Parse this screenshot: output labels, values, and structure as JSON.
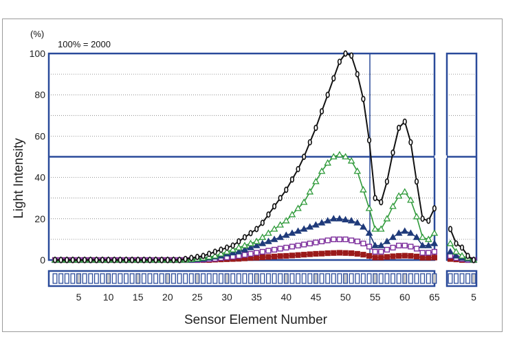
{
  "chart_data": {
    "type": "line",
    "unit_label": "(%)",
    "annotation": "100% = 2000",
    "ylabel": "Light Intensity",
    "xlabel": "Sensor Element Number",
    "ylim": [
      0,
      100
    ],
    "yticks": [
      "0",
      "20",
      "40",
      "60",
      "80",
      "100"
    ],
    "xticks_main": [
      "5",
      "10",
      "15",
      "20",
      "25",
      "30",
      "35",
      "40",
      "45",
      "50",
      "55",
      "60",
      "65"
    ],
    "xticks_aux": [
      "5"
    ],
    "threshold": 50,
    "grid": "horizontal dotted",
    "colors": {
      "frame": "#2a4a9a",
      "grid": "#777777",
      "cell_fill": "#c9c9c9",
      "series": [
        "#111111",
        "#2f9a3a",
        "#1f3a7a",
        "#7a2a9a",
        "#9a1a1a"
      ]
    },
    "series": [
      {
        "marker": "circle-open",
        "x": [
          1,
          2,
          3,
          4,
          5,
          6,
          7,
          8,
          9,
          10,
          11,
          12,
          13,
          14,
          15,
          16,
          17,
          18,
          19,
          20,
          21,
          22,
          23,
          24,
          25,
          26,
          27,
          28,
          29,
          30,
          31,
          32,
          33,
          34,
          35,
          36,
          37,
          38,
          39,
          40,
          41,
          42,
          43,
          44,
          45,
          46,
          47,
          48,
          49,
          50,
          51,
          52,
          53,
          54,
          55,
          56,
          57,
          58,
          59,
          60,
          61,
          62,
          63,
          64,
          65
        ],
        "y": [
          0,
          0,
          0,
          0,
          0,
          0,
          0,
          0,
          0,
          0,
          0,
          0,
          0,
          0,
          0,
          0,
          0,
          0,
          0,
          0,
          0,
          0,
          0.5,
          1,
          1.5,
          2,
          3,
          4,
          5,
          6,
          7,
          9,
          11,
          13,
          15,
          18,
          22,
          26,
          30,
          34,
          39,
          44,
          50,
          57,
          64,
          72,
          80,
          88,
          96,
          100,
          99,
          90,
          78,
          58,
          30,
          28,
          38,
          52,
          64,
          67,
          57,
          38,
          20,
          19,
          25
        ],
        "aux_x": [
          1,
          2,
          3,
          4,
          5
        ],
        "aux_y": [
          15,
          8,
          6,
          2,
          0
        ]
      },
      {
        "marker": "triangle-open",
        "x": [
          1,
          2,
          3,
          4,
          5,
          6,
          7,
          8,
          9,
          10,
          11,
          12,
          13,
          14,
          15,
          16,
          17,
          18,
          19,
          20,
          21,
          22,
          23,
          24,
          25,
          26,
          27,
          28,
          29,
          30,
          31,
          32,
          33,
          34,
          35,
          36,
          37,
          38,
          39,
          40,
          41,
          42,
          43,
          44,
          45,
          46,
          47,
          48,
          49,
          50,
          51,
          52,
          53,
          54,
          55,
          56,
          57,
          58,
          59,
          60,
          61,
          62,
          63,
          64,
          65
        ],
        "y": [
          0,
          0,
          0,
          0,
          0,
          0,
          0,
          0,
          0,
          0,
          0,
          0,
          0,
          0,
          0,
          0,
          0,
          0,
          0,
          0,
          0,
          0,
          0,
          0.3,
          0.6,
          1,
          1.5,
          2,
          3,
          4,
          5,
          6,
          7,
          8,
          9,
          11,
          13,
          15,
          17,
          19,
          22,
          25,
          28,
          33,
          38,
          43,
          47,
          50,
          51,
          50,
          48,
          43,
          34,
          25,
          15,
          15,
          20,
          26,
          31,
          33,
          29,
          21,
          11,
          10,
          13
        ],
        "aux_x": [
          1,
          2,
          3,
          4,
          5
        ],
        "aux_y": [
          8,
          4,
          2,
          1,
          0
        ]
      },
      {
        "marker": "triangle-filled",
        "x": [
          1,
          2,
          3,
          4,
          5,
          6,
          7,
          8,
          9,
          10,
          11,
          12,
          13,
          14,
          15,
          16,
          17,
          18,
          19,
          20,
          21,
          22,
          23,
          24,
          25,
          26,
          27,
          28,
          29,
          30,
          31,
          32,
          33,
          34,
          35,
          36,
          37,
          38,
          39,
          40,
          41,
          42,
          43,
          44,
          45,
          46,
          47,
          48,
          49,
          50,
          51,
          52,
          53,
          54,
          55,
          56,
          57,
          58,
          59,
          60,
          61,
          62,
          63,
          64,
          65
        ],
        "y": [
          0,
          0,
          0,
          0,
          0,
          0,
          0,
          0,
          0,
          0,
          0,
          0,
          0,
          0,
          0,
          0,
          0,
          0,
          0,
          0,
          0,
          0,
          0,
          0,
          0.3,
          0.5,
          1,
          1.5,
          2,
          3,
          3.5,
          4,
          5,
          6,
          7,
          8,
          9,
          10,
          11,
          12,
          13,
          14,
          15,
          16,
          17,
          18,
          19,
          20,
          20,
          19.5,
          19,
          18,
          16,
          13,
          7,
          7,
          9,
          11,
          13,
          14,
          13,
          11,
          7,
          7,
          8
        ],
        "aux_x": [
          1,
          2,
          3,
          4,
          5
        ],
        "aux_y": [
          4,
          2,
          1,
          0.5,
          0
        ]
      },
      {
        "marker": "square-open",
        "x": [
          1,
          2,
          3,
          4,
          5,
          6,
          7,
          8,
          9,
          10,
          11,
          12,
          13,
          14,
          15,
          16,
          17,
          18,
          19,
          20,
          21,
          22,
          23,
          24,
          25,
          26,
          27,
          28,
          29,
          30,
          31,
          32,
          33,
          34,
          35,
          36,
          37,
          38,
          39,
          40,
          41,
          42,
          43,
          44,
          45,
          46,
          47,
          48,
          49,
          50,
          51,
          52,
          53,
          54,
          55,
          56,
          57,
          58,
          59,
          60,
          61,
          62,
          63,
          64,
          65
        ],
        "y": [
          0,
          0,
          0,
          0,
          0,
          0,
          0,
          0,
          0,
          0,
          0,
          0,
          0,
          0,
          0,
          0,
          0,
          0,
          0,
          0,
          0,
          0,
          0,
          0,
          0,
          0.2,
          0.4,
          0.6,
          1,
          1.3,
          1.6,
          2,
          2.5,
          3,
          3.5,
          4,
          4.5,
          5,
          5.5,
          6,
          6.5,
          7,
          7.5,
          8,
          8.5,
          9,
          9.5,
          10,
          10,
          10,
          9.5,
          9,
          8,
          6.5,
          4,
          4,
          5,
          6,
          7,
          7,
          6.5,
          5.5,
          3.5,
          3.5,
          4
        ],
        "aux_x": [
          1,
          2,
          3,
          4,
          5
        ],
        "aux_y": [
          2,
          1,
          0.5,
          0,
          0
        ]
      },
      {
        "marker": "square-filled",
        "x": [
          1,
          2,
          3,
          4,
          5,
          6,
          7,
          8,
          9,
          10,
          11,
          12,
          13,
          14,
          15,
          16,
          17,
          18,
          19,
          20,
          21,
          22,
          23,
          24,
          25,
          26,
          27,
          28,
          29,
          30,
          31,
          32,
          33,
          34,
          35,
          36,
          37,
          38,
          39,
          40,
          41,
          42,
          43,
          44,
          45,
          46,
          47,
          48,
          49,
          50,
          51,
          52,
          53,
          54,
          55,
          56,
          57,
          58,
          59,
          60,
          61,
          62,
          63,
          64,
          65
        ],
        "y": [
          0,
          0,
          0,
          0,
          0,
          0,
          0,
          0,
          0,
          0,
          0,
          0,
          0,
          0,
          0,
          0,
          0,
          0,
          0,
          0,
          0,
          0,
          0,
          0,
          0,
          0,
          0,
          0.2,
          0.3,
          0.4,
          0.5,
          0.6,
          0.8,
          1,
          1.1,
          1.3,
          1.5,
          1.7,
          1.9,
          2,
          2.2,
          2.4,
          2.6,
          2.8,
          3,
          3.1,
          3.3,
          3.4,
          3.5,
          3.4,
          3.3,
          3,
          2.6,
          2,
          1.2,
          1.2,
          1.5,
          1.8,
          2,
          2.1,
          2,
          1.7,
          1.1,
          1.1,
          1.2
        ],
        "aux_x": [
          1,
          2,
          3,
          4,
          5
        ],
        "aux_y": [
          0.5,
          0.3,
          0,
          0,
          0
        ]
      }
    ]
  }
}
